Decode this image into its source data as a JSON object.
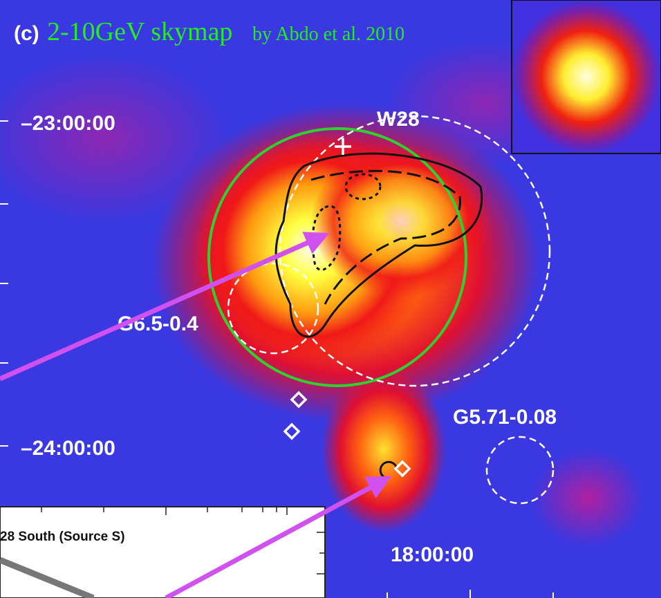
{
  "panel_label": "(c)",
  "title": "2-10GeV skymap",
  "attribution": "by Abdo et al. 2010",
  "dec_labels": [
    "–23:00:00",
    "–24:00:00"
  ],
  "ra_label": "18:00:00",
  "sources": [
    "W28",
    "G6.5-0.4",
    "G5.71-0.08"
  ],
  "inset_plot_title": "28 South (Source S)"
}
